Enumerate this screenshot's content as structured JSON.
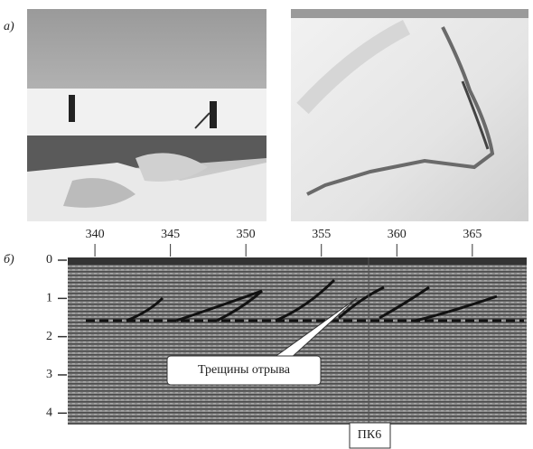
{
  "panel_a": {
    "label": "а)"
  },
  "panel_b": {
    "label": "б)",
    "xlim": [
      338.2,
      368.6
    ],
    "xticks": [
      340,
      345,
      350,
      355,
      360,
      365
    ],
    "ylim": [
      0,
      4.3
    ],
    "yticks": [
      0,
      1,
      2,
      3,
      4
    ],
    "annotation": "Трещины отрыва",
    "marker_label": "ПК6"
  }
}
